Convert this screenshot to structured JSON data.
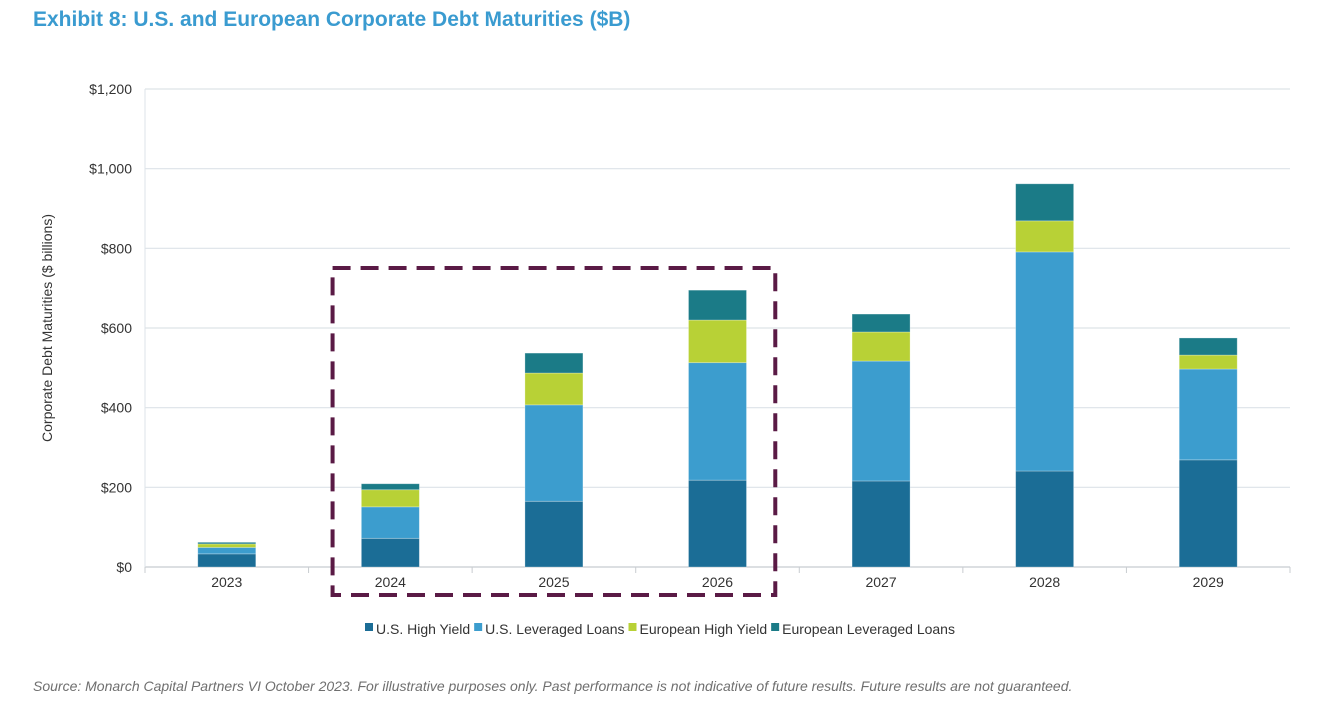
{
  "title": "Exhibit 8: U.S. and European Corporate Debt Maturities ($B)",
  "source": "Source: Monarch Capital Partners VI October 2023. For illustrative purposes only.  Past performance is not indicative of future results.  Future results are not guaranteed.",
  "chart_data": {
    "type": "bar",
    "stacked": true,
    "ylabel": "Corporate Debt Maturities ($ billions)",
    "ylim": [
      0,
      1200
    ],
    "yticks": [
      "$0",
      "$200",
      "$400",
      "$600",
      "$800",
      "$1,000",
      "$1,200"
    ],
    "ytick_values": [
      0,
      200,
      400,
      600,
      800,
      1000,
      1200
    ],
    "categories": [
      "2023",
      "2024",
      "2025",
      "2026",
      "2027",
      "2028",
      "2029"
    ],
    "grid": "horizontal",
    "legend": "bottom",
    "series": [
      {
        "name": "U.S. High Yield",
        "color": "#1b6d96",
        "values": [
          33,
          72,
          165,
          218,
          216,
          241,
          269
        ]
      },
      {
        "name": "U.S. Leveraged Loans",
        "color": "#3c9dce",
        "values": [
          16,
          79,
          242,
          295,
          301,
          550,
          228
        ]
      },
      {
        "name": "European High Yield",
        "color": "#b8d136",
        "values": [
          9,
          43,
          80,
          107,
          73,
          78,
          35
        ]
      },
      {
        "name": "European Leveraged Loans",
        "color": "#1b7b87",
        "values": [
          4,
          15,
          50,
          75,
          45,
          93,
          43
        ]
      }
    ],
    "highlight": {
      "categories": [
        "2024",
        "2025",
        "2026"
      ],
      "style": "dashed box",
      "color": "#5a1a45"
    }
  }
}
